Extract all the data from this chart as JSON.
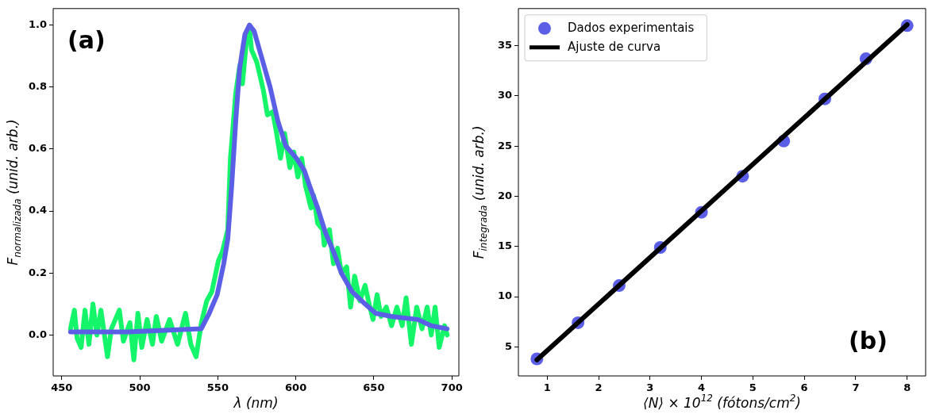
{
  "chart_data": [
    {
      "type": "line",
      "annotations": [
        "(a)"
      ],
      "xlabel": "λ (nm)",
      "ylabel": "F$_{normalizada}$ (unid. arb.)",
      "xlim": [
        444.5,
        704.5
      ],
      "ylim": [
        -0.132,
        1.053
      ],
      "xticks": [
        450,
        500,
        550,
        600,
        650,
        700
      ],
      "yticks": [
        {
          "value": 0,
          "label": "0.0"
        },
        0.2,
        0.4,
        0.6,
        0.8,
        {
          "value": 1,
          "label": "1.0"
        }
      ],
      "series": [
        {
          "color": "#14f56a",
          "x": [
            455.6,
            458.1,
            459.8,
            462.4,
            464.9,
            467.4,
            470.0,
            472.5,
            475.1,
            479.3,
            481.8,
            486.9,
            489.5,
            493.7,
            496.2,
            498.8,
            501.3,
            504.7,
            508.1,
            510.6,
            514.0,
            519.1,
            524.2,
            529.3,
            532.7,
            536.1,
            539.5,
            542.9,
            546.2,
            550.4,
            553.0,
            556.4,
            558.1,
            561.5,
            564.1,
            565.8,
            568.2,
            570.3,
            571.6,
            575.0,
            579.2,
            581.8,
            585.2,
            587.7,
            590.2,
            592.8,
            596.2,
            598.7,
            601.3,
            603.8,
            606.3,
            609.7,
            611.4,
            614.0,
            617.3,
            618.2,
            621.6,
            624.1,
            626.7,
            629.2,
            632.6,
            635.1,
            637.7,
            641.1,
            644.4,
            647.0,
            649.5,
            652.1,
            654.6,
            658.0,
            661.4,
            664.8,
            668.2,
            670.7,
            674.1,
            677.5,
            680.9,
            684.2,
            686.8,
            689.3,
            691.9,
            695.3,
            697.0
          ],
          "values": [
            0.02,
            0.08,
            -0.01,
            -0.04,
            0.08,
            -0.03,
            0.1,
            0.0,
            0.08,
            -0.07,
            0.02,
            0.08,
            -0.02,
            0.04,
            -0.08,
            0.07,
            -0.04,
            0.05,
            -0.03,
            0.06,
            -0.02,
            0.05,
            -0.03,
            0.07,
            -0.03,
            -0.07,
            0.04,
            0.11,
            0.14,
            0.24,
            0.27,
            0.34,
            0.57,
            0.78,
            0.87,
            0.81,
            0.94,
            0.99,
            0.92,
            0.88,
            0.79,
            0.71,
            0.72,
            0.65,
            0.57,
            0.65,
            0.54,
            0.59,
            0.51,
            0.57,
            0.48,
            0.41,
            0.45,
            0.36,
            0.34,
            0.29,
            0.34,
            0.23,
            0.28,
            0.2,
            0.22,
            0.09,
            0.19,
            0.11,
            0.16,
            0.1,
            0.05,
            0.13,
            0.06,
            0.09,
            0.03,
            0.09,
            0.03,
            0.12,
            -0.03,
            0.09,
            0.02,
            0.09,
            0.0,
            0.09,
            -0.04,
            0.03,
            0.0
          ]
        },
        {
          "color": "#5b5fe6",
          "x": [
            455.6,
            492,
            539.4,
            544.5,
            549.6,
            553.8,
            556.4,
            558.9,
            561.5,
            564,
            567.4,
            570.3,
            573.3,
            578.4,
            583.5,
            588.5,
            593.6,
            600.4,
            605.5,
            608.9,
            614,
            619,
            624.1,
            629.2,
            636,
            644.4,
            651.2,
            661.4,
            678.3,
            686.8,
            697
          ],
          "values": [
            0.01,
            0.01,
            0.02,
            0.07,
            0.13,
            0.23,
            0.31,
            0.48,
            0.69,
            0.86,
            0.97,
            1.0,
            0.98,
            0.89,
            0.8,
            0.69,
            0.61,
            0.57,
            0.53,
            0.48,
            0.41,
            0.33,
            0.27,
            0.2,
            0.14,
            0.1,
            0.07,
            0.06,
            0.05,
            0.03,
            0.02
          ]
        }
      ]
    },
    {
      "type": "scatter",
      "annotations": [
        "(b)"
      ],
      "xlabel": "⟨N⟩ × 10$^{12}$ (fótons/cm$^{2}$)",
      "ylabel": "F$_{integrada}$ (unid. arb.)",
      "xlim": [
        0.44,
        8.36
      ],
      "ylim": [
        2.1,
        38.7
      ],
      "xticks": [
        1,
        2,
        3,
        4,
        5,
        6,
        7,
        8
      ],
      "yticks": [
        5,
        10,
        15,
        20,
        25,
        30,
        35
      ],
      "legend": "top left",
      "series": [
        {
          "name": "Dados experimentais",
          "marker": "circle",
          "color": "#5b5fe6",
          "x": [
            0.8,
            1.6,
            2.4,
            3.2,
            4.0,
            4.8,
            5.6,
            6.4,
            7.2,
            8.0
          ],
          "values": [
            3.8,
            7.4,
            11.1,
            14.9,
            18.4,
            22.0,
            25.5,
            29.7,
            33.7,
            37.0
          ]
        },
        {
          "name": "Ajuste de curva",
          "type": "line",
          "color": "#000000",
          "x": [
            0.8,
            8.0
          ],
          "values": [
            3.7,
            37.1
          ]
        }
      ]
    }
  ]
}
